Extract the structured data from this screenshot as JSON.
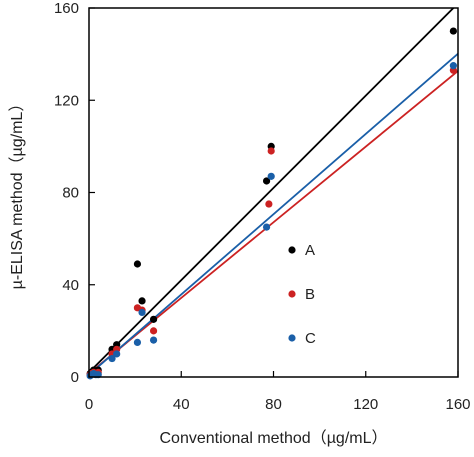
{
  "chart_data": {
    "type": "scatter",
    "xlabel": "Conventional method（µg/mL）",
    "ylabel": "µ-ELISA method（µg/mL）",
    "xlim": [
      0,
      160
    ],
    "ylim": [
      0,
      160
    ],
    "xticks": [
      0,
      40,
      80,
      120,
      160
    ],
    "yticks": [
      0,
      40,
      80,
      120,
      160
    ],
    "xtick_labels": [
      "0",
      "40",
      "80",
      "120",
      "160"
    ],
    "ytick_labels": [
      "0",
      "40",
      "80",
      "120",
      "160"
    ],
    "grid": false,
    "legend_position": "right-center",
    "series": [
      {
        "name": "A",
        "color": "#000000",
        "points": [
          [
            0.5,
            1.5
          ],
          [
            1,
            2
          ],
          [
            2,
            3
          ],
          [
            3,
            2
          ],
          [
            4,
            3
          ],
          [
            10,
            12
          ],
          [
            12,
            14
          ],
          [
            21,
            49
          ],
          [
            23,
            33
          ],
          [
            28,
            25
          ],
          [
            77,
            85
          ],
          [
            79,
            100
          ],
          [
            158,
            150
          ]
        ],
        "fit": {
          "slope": 1.0,
          "intercept": 2.0
        }
      },
      {
        "name": "B",
        "color": "#cc2222",
        "points": [
          [
            0.5,
            1
          ],
          [
            1,
            1.5
          ],
          [
            2,
            2
          ],
          [
            3,
            1.5
          ],
          [
            4,
            2
          ],
          [
            10,
            10
          ],
          [
            12,
            12
          ],
          [
            21,
            30
          ],
          [
            23,
            29
          ],
          [
            28,
            20
          ],
          [
            78,
            75
          ],
          [
            79,
            98
          ],
          [
            158,
            133
          ]
        ],
        "fit": {
          "slope": 0.82,
          "intercept": 1.5
        }
      },
      {
        "name": "C",
        "color": "#1a5fa8",
        "points": [
          [
            0.5,
            0.5
          ],
          [
            1,
            1
          ],
          [
            2,
            1.5
          ],
          [
            3,
            1
          ],
          [
            4,
            1
          ],
          [
            10,
            8
          ],
          [
            12,
            10
          ],
          [
            21,
            15
          ],
          [
            23,
            28
          ],
          [
            28,
            16
          ],
          [
            77,
            65
          ],
          [
            79,
            87
          ],
          [
            158,
            135
          ]
        ],
        "fit": {
          "slope": 0.87,
          "intercept": 1.0
        }
      }
    ]
  }
}
